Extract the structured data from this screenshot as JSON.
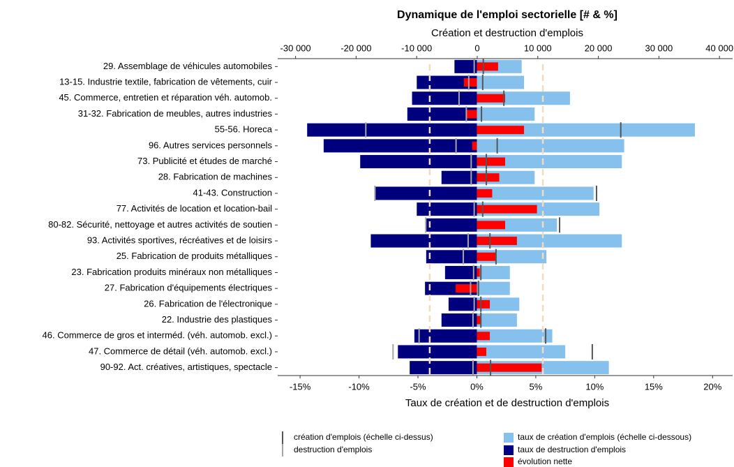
{
  "chart_data": {
    "type": "bar",
    "orientation": "horizontal",
    "title": "Dynamique de l'emploi sectorielle [# & %]",
    "x2_label": "Création et destruction d'emplois",
    "x_label": "Taux de création et de destruction d'emplois",
    "categories": [
      "29. Assemblage de véhicules automobiles",
      "13-15. Industrie textile, fabrication de vêtements, cuir",
      "45. Commerce, entretien et réparation véh. automob.",
      "31-32. Fabrication de meubles, autres industries",
      "55-56. Horeca",
      "96. Autres services personnels",
      "73. Publicité et études de marché",
      "28. Fabrication de machines",
      "41-43. Construction",
      "77. Activités de location et location-bail",
      "80-82. Sécurité, nettoyage et autres activités de soutien",
      "93. Activités sportives, récréatives et de loisirs",
      "25. Fabrication de produits métalliques",
      "23. Fabrication produits minéraux non métalliques",
      "27. Fabrication d'équipements électriques",
      "26. Fabrication de l'électronique",
      "22. Industrie des plastiques",
      "46. Commerce de gros et interméd. (véh. automob. excl.)",
      "47. Commerce de détail (véh. automob. excl.)",
      "90-92. Act. créatives, artistiques, spectacle"
    ],
    "series": [
      {
        "name": "taux de création d'emplois (échelle ci-dessous)",
        "color": "#85c1ec",
        "kind": "bar",
        "values": [
          3.8,
          4.0,
          7.9,
          4.9,
          18.5,
          12.5,
          12.3,
          4.9,
          9.9,
          10.4,
          6.8,
          12.3,
          5.9,
          2.8,
          2.8,
          3.6,
          3.4,
          6.4,
          7.5,
          11.2
        ]
      },
      {
        "name": "taux de destruction d'emplois",
        "color": "#00007f",
        "kind": "bar",
        "values": [
          -1.9,
          -5.1,
          -5.5,
          -5.9,
          -14.4,
          -13.0,
          -9.9,
          -3.0,
          -8.6,
          -5.1,
          -4.3,
          -9.0,
          -4.3,
          -2.7,
          -4.4,
          -2.4,
          -3.0,
          -5.3,
          -6.7,
          -5.7
        ]
      },
      {
        "name": "évolution nette",
        "color": "#ff0000",
        "kind": "bar",
        "values": [
          1.8,
          -1.1,
          2.4,
          -0.95,
          4.0,
          -0.4,
          2.4,
          1.9,
          1.3,
          5.1,
          2.4,
          3.4,
          1.6,
          0.25,
          -1.8,
          1.1,
          0.35,
          1.1,
          0.8,
          5.5
        ]
      },
      {
        "name": "création d'emplois (échelle ci-dessus)",
        "color": "#555555",
        "kind": "tick",
        "axis": "x2",
        "values": [
          1000,
          900,
          4400,
          700,
          23700,
          3300,
          1500,
          1500,
          19700,
          900,
          13600,
          2100,
          3100,
          600,
          200,
          600,
          600,
          11300,
          19000,
          2200
        ]
      },
      {
        "name": "destruction d'emplois",
        "color": "#a6a6a6",
        "kind": "tick",
        "axis": "x2",
        "values": [
          -500,
          -1400,
          -3000,
          -1800,
          -18400,
          -3500,
          -1000,
          -1000,
          -16900,
          -500,
          -8500,
          -1500,
          -2300,
          -600,
          -1100,
          -500,
          -700,
          -9600,
          -13900,
          -700
        ]
      }
    ],
    "xlim": [
      -16.9,
      21.7
    ],
    "xticks": [
      {
        "value": -15,
        "label": "-15%"
      },
      {
        "value": -10,
        "label": "-10%"
      },
      {
        "value": -5,
        "label": "-5%"
      },
      {
        "value": 0,
        "label": "0%"
      },
      {
        "value": 5,
        "label": "5%"
      },
      {
        "value": 10,
        "label": "10%"
      },
      {
        "value": 15,
        "label": "15%"
      },
      {
        "value": 20,
        "label": "20%"
      }
    ],
    "x2lim": [
      -32950,
      42170
    ],
    "x2ticks": [
      {
        "value": -30000,
        "label": "-30 000"
      },
      {
        "value": -20000,
        "label": "-20 000"
      },
      {
        "value": -10000,
        "label": "-10 000"
      },
      0,
      {
        "value": 10000,
        "label": "10 000"
      },
      {
        "value": 20000,
        "label": "20 000"
      },
      {
        "value": 30000,
        "label": "30 000"
      },
      {
        "value": 40000,
        "label": "40 000"
      }
    ],
    "reference_lines": [
      -4.0,
      5.6
    ],
    "reference_color": "#f2dcc0",
    "grid": false
  }
}
